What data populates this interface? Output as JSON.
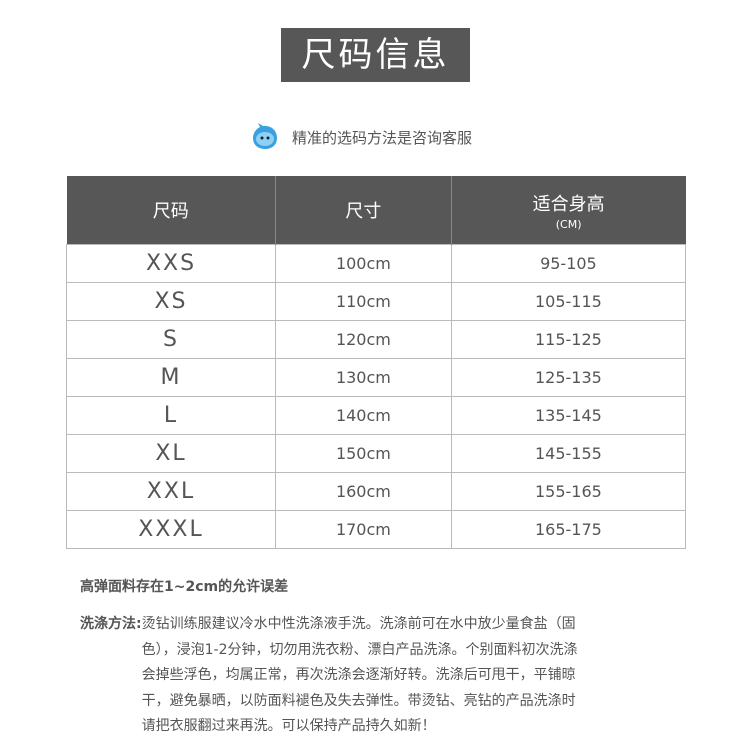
{
  "title": "尺码信息",
  "tip": {
    "icon": "qq-penguin-bubble-icon",
    "text": "精准的选码方法是咨询客服",
    "icon_color": "#3aa0e0"
  },
  "table": {
    "headers": [
      {
        "label": "尺码"
      },
      {
        "label": "尺寸"
      },
      {
        "label": "适合身高",
        "sub": "(CM)"
      }
    ],
    "rows": [
      {
        "size": "XXS",
        "dim": "100cm",
        "height": "95-105"
      },
      {
        "size": "XS",
        "dim": "110cm",
        "height": "105-115"
      },
      {
        "size": "S",
        "dim": "120cm",
        "height": "115-125"
      },
      {
        "size": "M",
        "dim": "130cm",
        "height": "125-135"
      },
      {
        "size": "L",
        "dim": "140cm",
        "height": "135-145"
      },
      {
        "size": "XL",
        "dim": "150cm",
        "height": "145-155"
      },
      {
        "size": "XXL",
        "dim": "160cm",
        "height": "155-165"
      },
      {
        "size": "XXXL",
        "dim": "170cm",
        "height": "165-175"
      }
    ]
  },
  "note": "高弹面料存在1~2cm的允许误差",
  "wash": {
    "label": "洗涤方法:",
    "lines": [
      "烫钻训练服建议冷水中性洗涤液手洗。洗涤前可在水中放少量食盐（固",
      "色），浸泡1-2分钟，切勿用洗衣粉、漂白产品洗涤。个别面料初次洗涤",
      "会掉些浮色，均属正常，再次洗涤会逐渐好转。洗涤后可甩干，平铺晾",
      "干，避免暴晒，以防面料褪色及失去弹性。带烫钻、亮钻的产品洗涤时",
      "请把衣服翻过来再洗。可以保持产品持久如新！"
    ]
  }
}
